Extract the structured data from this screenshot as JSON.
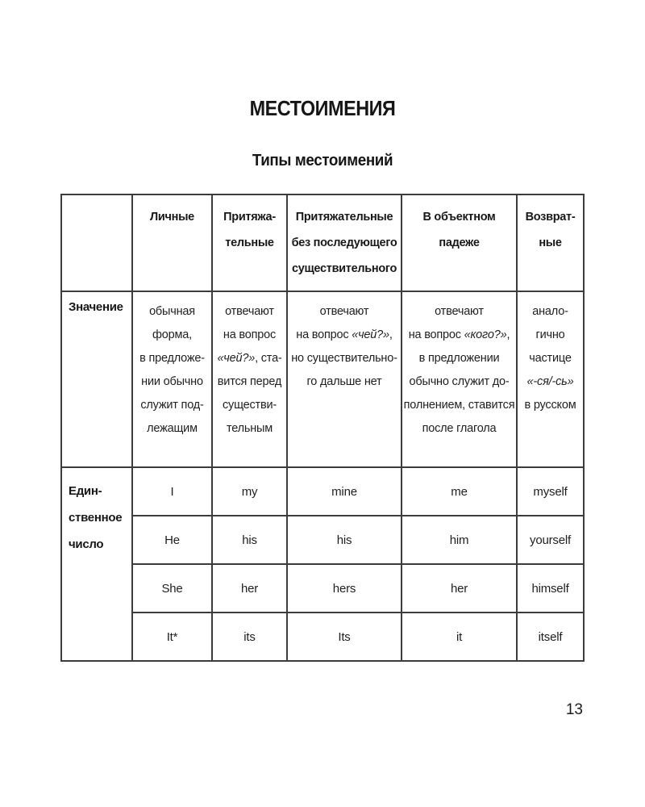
{
  "page": {
    "title": "МЕСТОИМЕНИЯ",
    "subtitle": "Типы местоимений",
    "page_number": "13"
  },
  "table": {
    "column_headers": [
      "",
      "Личные",
      "Притяжа-\nтельные",
      "Притяжательные\nбез последующего\nсуществительного",
      "В объектном\nпадеже",
      "Возврат-\nные"
    ],
    "meaning_row": {
      "label": "Значение",
      "cells": [
        "обычная\nформа,\nв предложе-\nнии обычно\nслужит под-\nлежащим",
        "отвечают\nна вопрос\n«чей?», ста-\nвится перед\nсуществи-\nтельным",
        "отвечают\nна вопрос «чей?»,\nно существительно-\nго дальше нет",
        "отвечают\nна вопрос «кого?»,\nв предложении\nобычно служит до-\nполнением, ставится\nпосле глагола",
        "анало-\nгично\nчастице\n«-ся/-сь»\nв русском"
      ]
    },
    "body_section": {
      "label": "Един-\nственное\nчисло",
      "rows": [
        [
          "I",
          "my",
          "mine",
          "me",
          "myself"
        ],
        [
          "He",
          "his",
          "his",
          "him",
          "yourself"
        ],
        [
          "She",
          "her",
          "hers",
          "her",
          "himself"
        ],
        [
          "It*",
          "its",
          "Its",
          "it",
          "itself"
        ]
      ]
    }
  }
}
